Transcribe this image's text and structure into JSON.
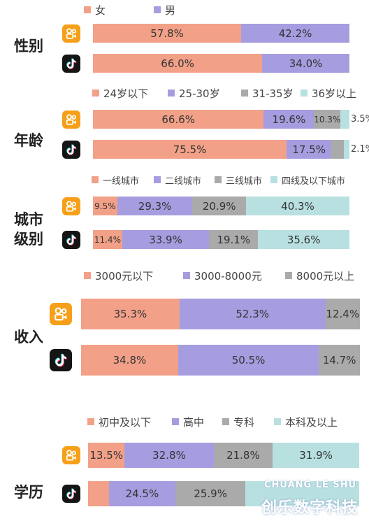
{
  "colors": {
    "orange": "#f2a188",
    "purple": "#a59de0",
    "gray": "#aaaaaa",
    "teal": "#b8e0e0",
    "kuaishou": "#f5a018",
    "douyin": "#151515"
  },
  "icons": {
    "kuaishou": "kuaishou-app-icon",
    "douyin": "douyin-app-icon"
  },
  "chart_data": [
    {
      "type": "bar",
      "orientation": "horizontal",
      "stacked": true,
      "normalized": true,
      "category_label": "性别",
      "legend": [
        "女",
        "男"
      ],
      "rows": [
        {
          "app": "kuaishou",
          "values": [
            57.8,
            42.2
          ],
          "labels": [
            "57.8%",
            "42.2%"
          ]
        },
        {
          "app": "douyin",
          "values": [
            66.0,
            34.0
          ],
          "labels": [
            "66.0%",
            "34.0%"
          ]
        }
      ]
    },
    {
      "type": "bar",
      "orientation": "horizontal",
      "stacked": true,
      "normalized": true,
      "category_label": "年龄",
      "legend": [
        "24岁以下",
        "25-30岁",
        "31-35岁",
        "36岁以上"
      ],
      "rows": [
        {
          "app": "kuaishou",
          "values": [
            66.6,
            19.6,
            10.3,
            3.5
          ],
          "labels": [
            "66.6%",
            "19.6%",
            "10.3%",
            "3.5%"
          ]
        },
        {
          "app": "douyin",
          "values": [
            75.5,
            17.5,
            4.9,
            2.1
          ],
          "labels": [
            "75.5%",
            "17.5%",
            "4.9%",
            "2.1%"
          ]
        }
      ]
    },
    {
      "type": "bar",
      "orientation": "horizontal",
      "stacked": true,
      "normalized": true,
      "category_label": "城市级别",
      "legend": [
        "一线城市",
        "二线城市",
        "三线城市",
        "四线及以下城市"
      ],
      "rows": [
        {
          "app": "kuaishou",
          "values": [
            9.5,
            29.3,
            20.9,
            40.3
          ],
          "labels": [
            "9.5%",
            "29.3%",
            "20.9%",
            "40.3%"
          ]
        },
        {
          "app": "douyin",
          "values": [
            11.4,
            33.9,
            19.1,
            35.6
          ],
          "labels": [
            "11.4%",
            "33.9%",
            "19.1%",
            "35.6%"
          ]
        }
      ]
    },
    {
      "type": "bar",
      "orientation": "horizontal",
      "stacked": true,
      "normalized": true,
      "category_label": "收入",
      "legend": [
        "3000元以下",
        "3000-8000元",
        "8000元以上"
      ],
      "rows": [
        {
          "app": "kuaishou",
          "values": [
            35.3,
            52.3,
            12.4
          ],
          "labels": [
            "35.3%",
            "52.3%",
            "12.4%"
          ]
        },
        {
          "app": "douyin",
          "values": [
            34.8,
            50.5,
            14.7
          ],
          "labels": [
            "34.8%",
            "50.5%",
            "14.7%"
          ]
        }
      ]
    },
    {
      "type": "bar",
      "orientation": "horizontal",
      "stacked": true,
      "normalized": true,
      "category_label": "学历",
      "legend": [
        "初中及以下",
        "高中",
        "专科",
        "本科及以上"
      ],
      "rows": [
        {
          "app": "kuaishou",
          "values": [
            13.5,
            32.8,
            21.8,
            31.9
          ],
          "labels": [
            "13.5%",
            "32.8%",
            "21.8%",
            "31.9%"
          ]
        },
        {
          "app": "douyin",
          "values": [
            7.7,
            24.5,
            25.9,
            41.9
          ],
          "labels": [
            "7.7%",
            "24.5%",
            "25.9%",
            ""
          ]
        }
      ]
    }
  ],
  "watermark": {
    "latin": "CHUANG LE SHU",
    "han": "创乐数字科技"
  }
}
